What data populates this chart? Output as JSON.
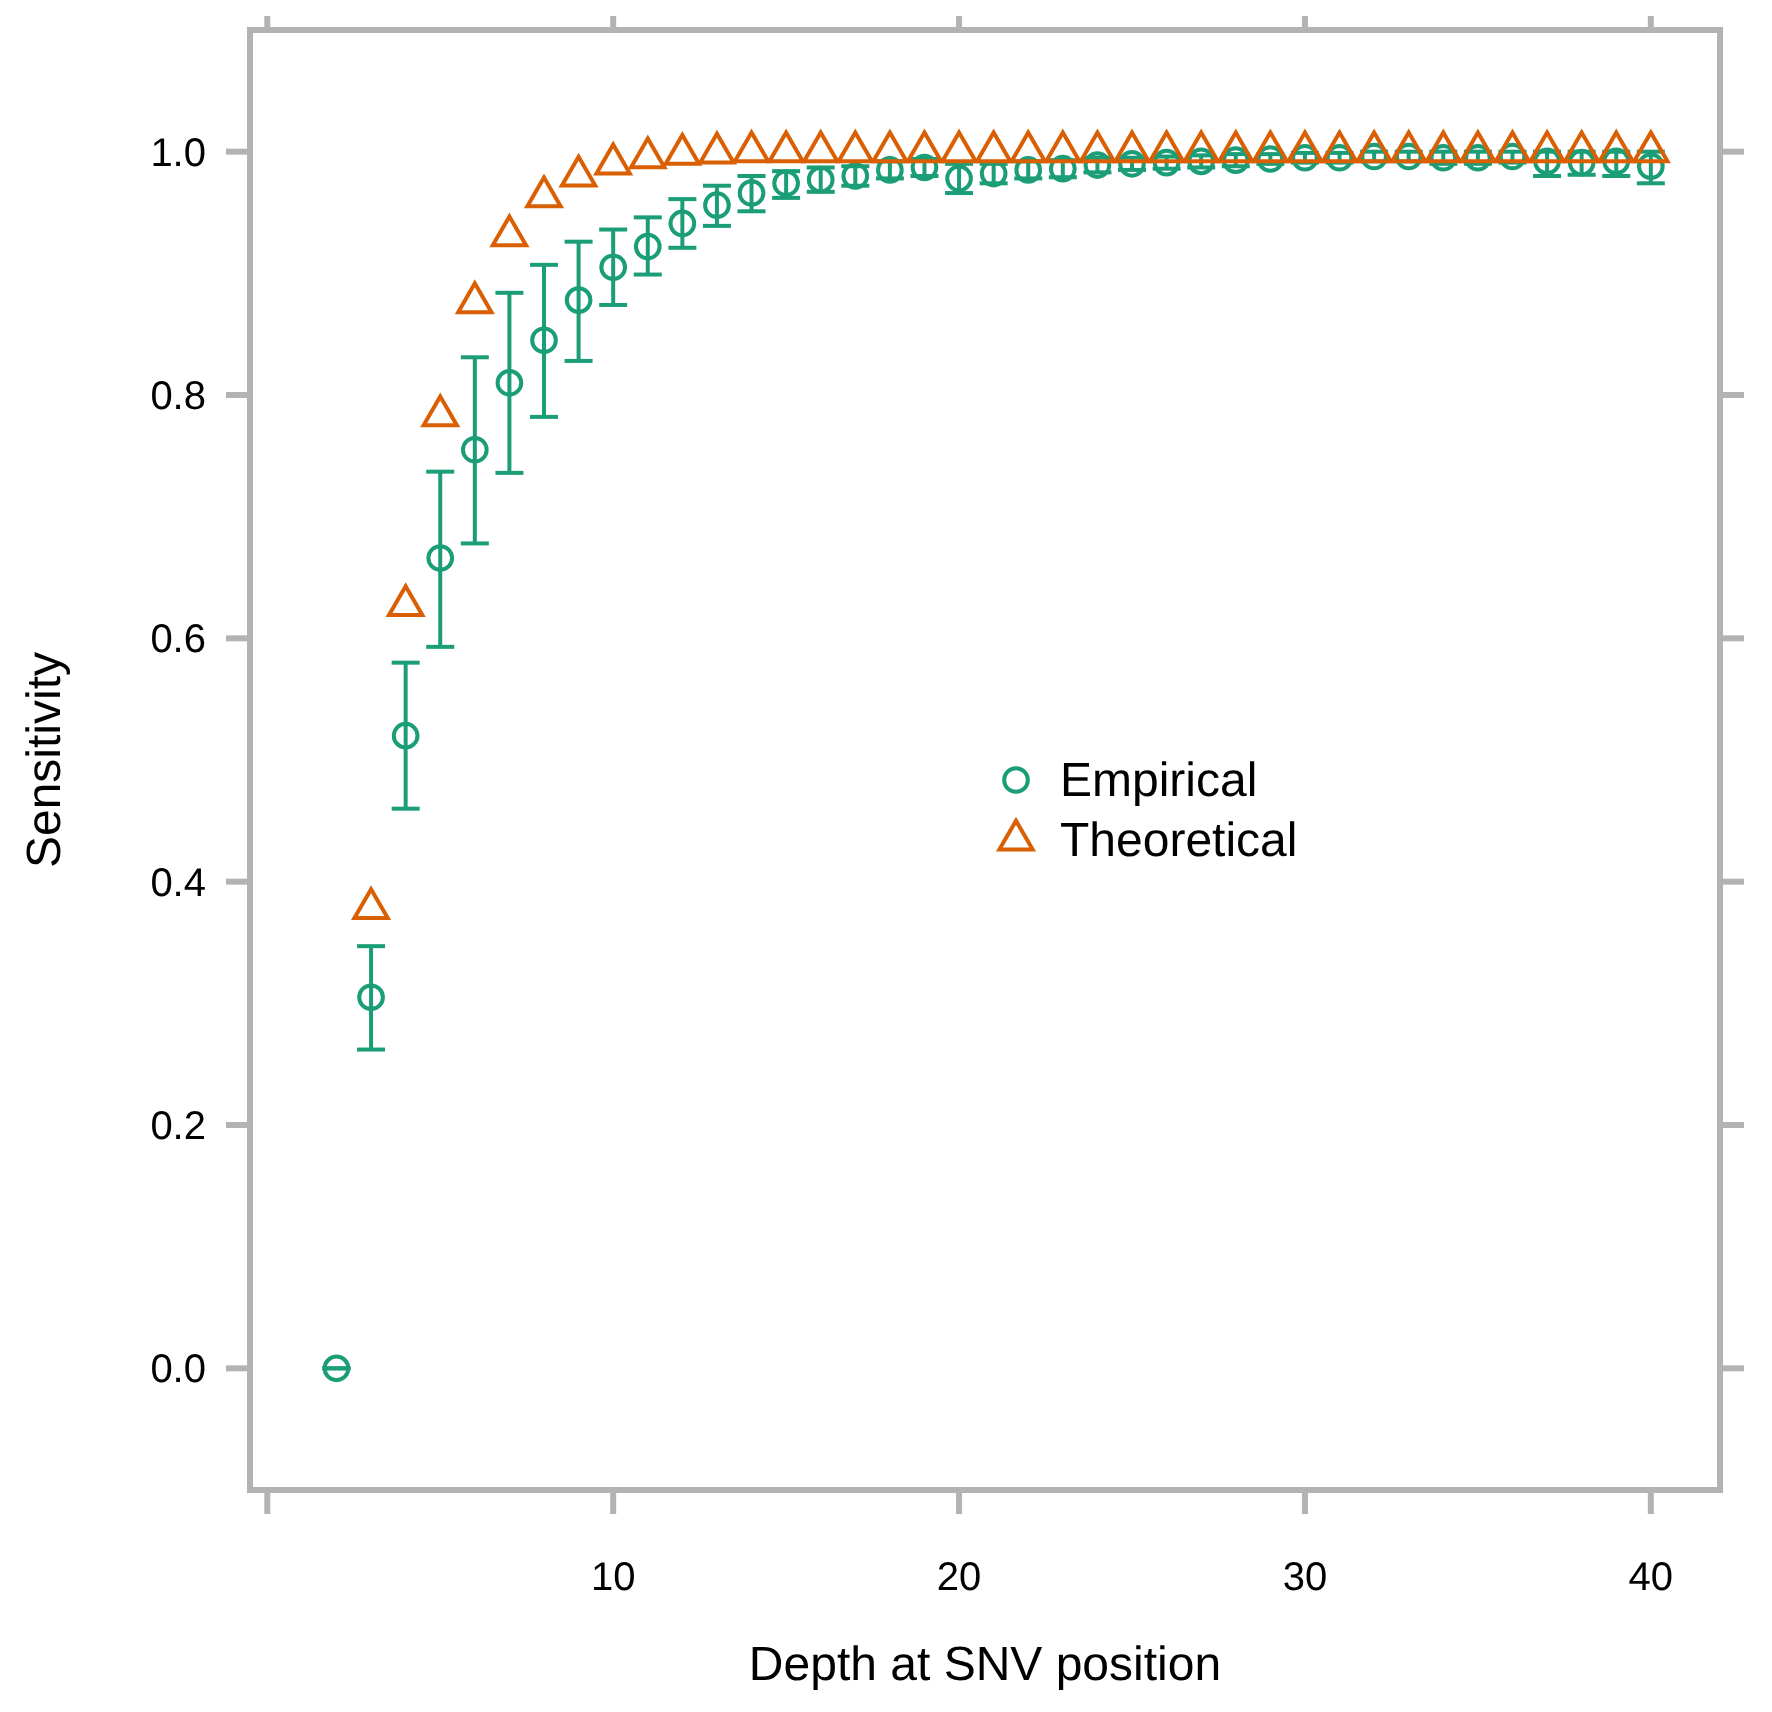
{
  "chart_data": {
    "type": "scatter",
    "xlabel": "Depth at SNV position",
    "ylabel": "Sensitivity",
    "xlim": [
      -0.5,
      42
    ],
    "ylim": [
      -0.1,
      1.1
    ],
    "xticks": [
      {
        "value": 0,
        "label": null
      },
      10,
      20,
      30,
      40
    ],
    "yticks": [
      {
        "value": 0,
        "label": "0.0"
      },
      {
        "value": 0.2,
        "label": "0.2"
      },
      {
        "value": 0.4,
        "label": "0.4"
      },
      {
        "value": 0.6,
        "label": "0.6"
      },
      {
        "value": 0.8,
        "label": "0.8"
      },
      {
        "value": 1,
        "label": "1.0"
      }
    ],
    "grid": false,
    "legend": "right",
    "series": [
      {
        "name": "Empirical",
        "color": "#1b9e77",
        "marker": "circle",
        "x": [
          2,
          3,
          4,
          5,
          6,
          7,
          8,
          9,
          10,
          11,
          12,
          13,
          14,
          15,
          16,
          17,
          18,
          19,
          20,
          21,
          22,
          23,
          24,
          25,
          26,
          27,
          28,
          29,
          30,
          31,
          32,
          33,
          34,
          35,
          36,
          37,
          38,
          39,
          40
        ],
        "values": [
          0,
          0.305,
          0.52,
          0.666,
          0.755,
          0.81,
          0.845,
          0.878,
          0.905,
          0.922,
          0.941,
          0.956,
          0.966,
          0.974,
          0.977,
          0.98,
          0.985,
          0.987,
          0.978,
          0.982,
          0.985,
          0.986,
          0.989,
          0.99,
          0.991,
          0.992,
          0.993,
          0.994,
          0.995,
          0.995,
          0.996,
          0.996,
          0.995,
          0.995,
          0.996,
          0.992,
          0.991,
          0.992,
          0.988
        ],
        "errors": [
          [
            0,
            0
          ],
          [
            0.262,
            0.347
          ],
          [
            0.46,
            0.58
          ],
          [
            0.593,
            0.737
          ],
          [
            0.678,
            0.831
          ],
          [
            0.736,
            0.884
          ],
          [
            0.782,
            0.907
          ],
          [
            0.828,
            0.926
          ],
          [
            0.874,
            0.936
          ],
          [
            0.899,
            0.946
          ],
          [
            0.921,
            0.961
          ],
          [
            0.939,
            0.972
          ],
          [
            0.951,
            0.98
          ],
          [
            0.962,
            0.984
          ],
          [
            0.967,
            0.987
          ],
          [
            0.972,
            0.988
          ],
          [
            0.978,
            0.992
          ],
          [
            0.98,
            0.994
          ],
          [
            0.966,
            0.99
          ],
          [
            0.974,
            0.99
          ],
          [
            0.978,
            0.992
          ],
          [
            0.979,
            0.993
          ],
          [
            0.983,
            0.995
          ],
          [
            0.985,
            0.995
          ],
          [
            0.986,
            0.996
          ],
          [
            0.987,
            0.997
          ],
          [
            0.988,
            0.998
          ],
          [
            0.99,
            0.998
          ],
          [
            0.991,
            0.999
          ],
          [
            0.991,
            0.999
          ],
          [
            0.992,
            1
          ],
          [
            0.992,
            1
          ],
          [
            0.99,
            1
          ],
          [
            0.99,
            1
          ],
          [
            0.991,
            1
          ],
          [
            0.98,
            1
          ],
          [
            0.981,
            1
          ],
          [
            0.98,
            1
          ],
          [
            0.974,
            1
          ]
        ]
      },
      {
        "name": "Theoretical",
        "color": "#d95f02",
        "marker": "triangle",
        "x": [
          3,
          4,
          5,
          6,
          7,
          8,
          9,
          10,
          11,
          12,
          13,
          14,
          15,
          16,
          17,
          18,
          19,
          20,
          21,
          22,
          23,
          24,
          25,
          26,
          27,
          28,
          29,
          30,
          31,
          32,
          33,
          34,
          35,
          36,
          37,
          38,
          39,
          40
        ],
        "values": [
          0.378,
          0.627,
          0.783,
          0.876,
          0.931,
          0.963,
          0.98,
          0.99,
          0.995,
          0.998,
          0.999,
          1,
          1,
          1,
          1,
          1,
          1,
          1,
          1,
          1,
          1,
          1,
          1,
          1,
          1,
          1,
          1,
          1,
          1,
          1,
          1,
          1,
          1,
          1,
          1,
          1,
          1,
          1
        ]
      }
    ]
  }
}
